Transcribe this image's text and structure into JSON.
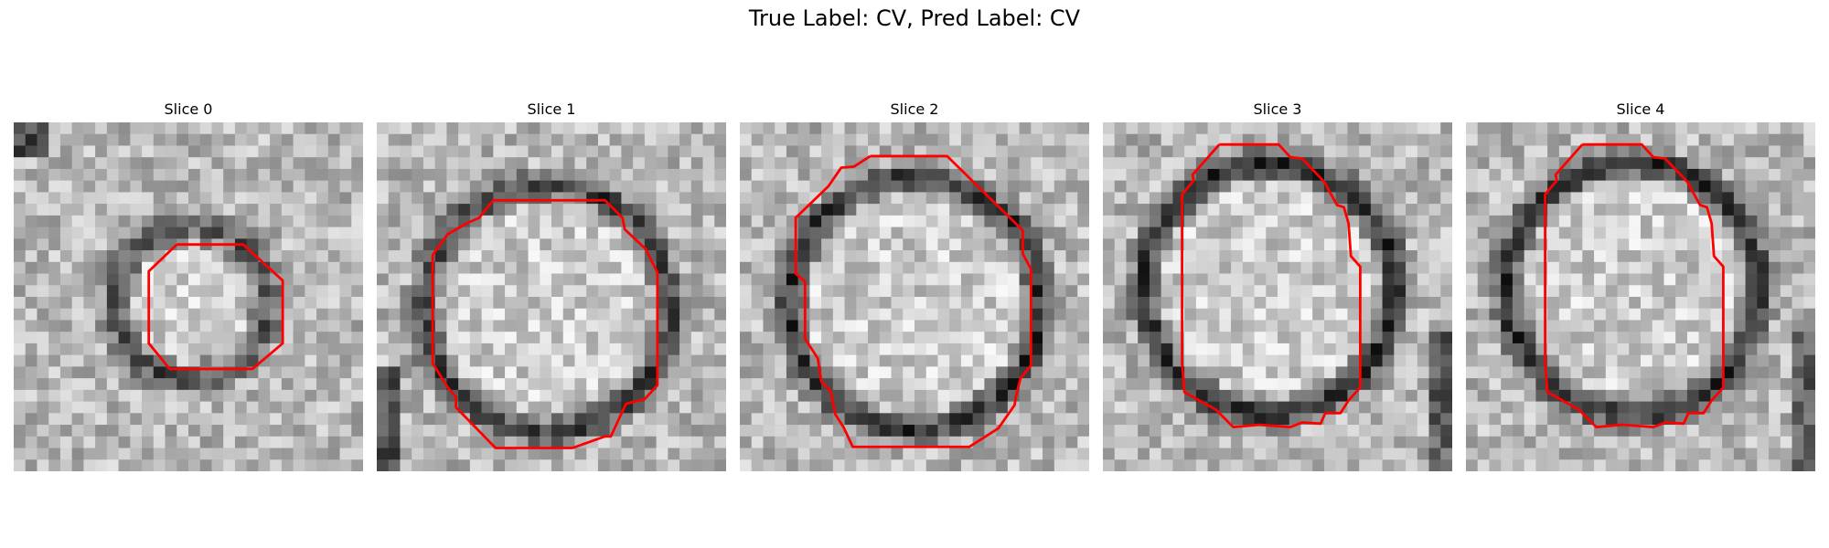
{
  "figure": {
    "title": "True Label: CV, Pred Label: CV"
  },
  "panels": [
    {
      "title": "Slice 0",
      "ring_scale": 0.62,
      "ring_darkness": 0.55,
      "contour_color": "#ff0000"
    },
    {
      "title": "Slice 1",
      "ring_scale": 1.0,
      "ring_darkness": 0.65,
      "contour_color": "#ff0000"
    },
    {
      "title": "Slice 2",
      "ring_scale": 1.05,
      "ring_darkness": 0.7,
      "contour_color": "#ff0000"
    },
    {
      "title": "Slice 3",
      "ring_scale": 1.0,
      "ring_darkness": 0.75,
      "contour_color": "#ff0000"
    },
    {
      "title": "Slice 4",
      "ring_scale": 1.0,
      "ring_darkness": 0.75,
      "contour_color": "#ff0000"
    }
  ],
  "colors": {
    "contour": "#ff0000",
    "background": "#ffffff"
  }
}
